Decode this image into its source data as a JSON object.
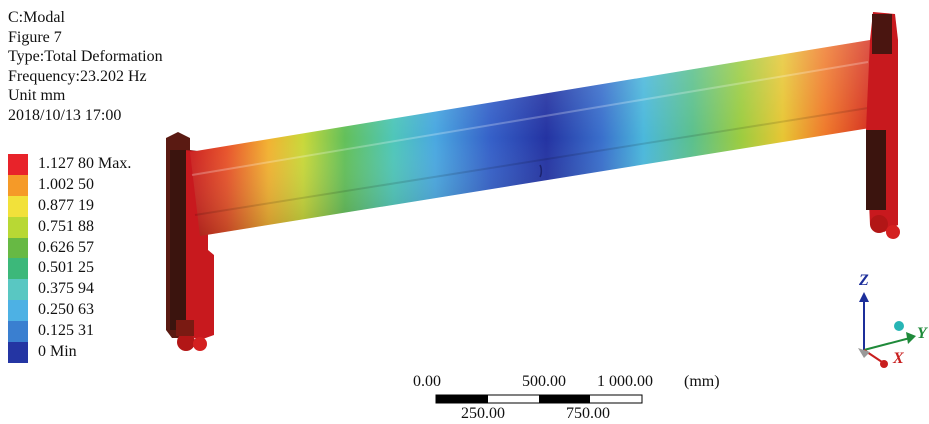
{
  "info": {
    "analysis": "C:Modal",
    "figure": "Figure 7",
    "type": "Type:Total Deformation",
    "frequency": "Frequency:23.202 Hz",
    "unit": "Unit mm",
    "timestamp": "2018/10/13 17:00"
  },
  "legend": [
    {
      "label": "1.127 80 Max.",
      "color": "#e8232a"
    },
    {
      "label": "1.002 50",
      "color": "#f59a28"
    },
    {
      "label": "0.877 19",
      "color": "#f2e13a"
    },
    {
      "label": "0.751 88",
      "color": "#b8d834"
    },
    {
      "label": "0.626 57",
      "color": "#67b944"
    },
    {
      "label": "0.501 25",
      "color": "#3cb87a"
    },
    {
      "label": "0.375 94",
      "color": "#59c7c2"
    },
    {
      "label": "0.250 63",
      "color": "#4db1e4"
    },
    {
      "label": "0.125 31",
      "color": "#3a7fd0"
    },
    {
      "label": "0 Min",
      "color": "#2435a3"
    }
  ],
  "scale_bar": {
    "top_labels": [
      "0.00",
      "500.00",
      "1 000.00"
    ],
    "bottom_labels": [
      "250.00",
      "750.00"
    ],
    "unit": "(mm)"
  },
  "triad": {
    "z": "Z",
    "y": "Y",
    "x": "X"
  }
}
